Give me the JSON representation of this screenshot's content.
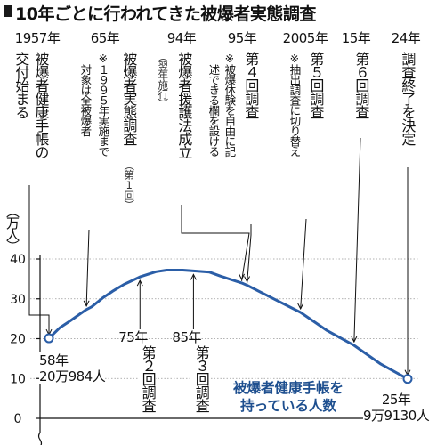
{
  "title": "10年ごとに行われてきた被爆者実態調査",
  "columns": [
    {
      "year": "1957年",
      "main": [
        "交付始まる",
        "被爆者健康手帳の"
      ],
      "note": [],
      "sub": ""
    },
    {
      "year": "65年",
      "main": [
        "被爆者実態調査"
      ],
      "sub": "（第1回）",
      "note": [
        "※１９９５年実施まで",
        "対象は全被爆者"
      ]
    },
    {
      "year": "94年",
      "main": [
        "被爆者援護法成立"
      ],
      "sub": "（翌年施行）",
      "note": []
    },
    {
      "year": "95年",
      "main": [
        "第４回調査"
      ],
      "sub": "",
      "note": [
        "※被爆体験を自由に記",
        "述できる欄を設ける"
      ]
    },
    {
      "year": "2005年",
      "main": [
        "第５回調査"
      ],
      "sub": "",
      "note": [
        "※抽出調査に切り替え"
      ]
    },
    {
      "year": "15年",
      "main": [
        "第６回調査"
      ],
      "sub": "",
      "note": []
    },
    {
      "year": "24年",
      "main": [
        "調査終了を決定"
      ],
      "sub": "",
      "note": []
    }
  ],
  "lower_labels": [
    {
      "year": "75年",
      "main": "第２回調査"
    },
    {
      "year": "85年",
      "main": "第３回調査"
    }
  ],
  "start_label": {
    "line1": "58年",
    "line2": "20万984人"
  },
  "end_label": {
    "line1": "25年",
    "line2": "9万9130人"
  },
  "y_unit": "（万人）",
  "series_label": {
    "line1": "被爆者健康手帳を",
    "line2": "持っている人数"
  },
  "colors": {
    "line": "#2b5ea7",
    "text": "#111111",
    "grid": "#999999",
    "series_label": "#1e4f8f"
  },
  "chart_data": {
    "type": "line",
    "title": "10年ごとに行われてきた被爆者実態調査",
    "ylabel": "（万人）",
    "yticks": [
      0,
      10,
      20,
      30,
      40
    ],
    "ylim": [
      0,
      40
    ],
    "xlim": [
      1957,
      2025
    ],
    "grid": true,
    "series": [
      {
        "name": "被爆者健康手帳を持っている人数",
        "x": [
          1958,
          1960,
          1962,
          1964,
          1965,
          1966,
          1968,
          1970,
          1972,
          1975,
          1978,
          1980,
          1983,
          1985,
          1988,
          1990,
          1994,
          1995,
          2000,
          2005,
          2010,
          2015,
          2020,
          2025
        ],
        "y": [
          20.1,
          22.7,
          24.5,
          26.4,
          27.3,
          28.0,
          30.2,
          32.0,
          33.6,
          35.5,
          36.8,
          37.2,
          37.2,
          37.0,
          36.7,
          35.7,
          34.0,
          33.4,
          30.0,
          26.6,
          22.0,
          18.3,
          13.6,
          9.9
        ]
      }
    ],
    "annotations": [
      {
        "x": 1958,
        "y": 20.1,
        "text": "58年 20万984人"
      },
      {
        "x": 2025,
        "y": 9.9,
        "text": "25年 9万9130人"
      }
    ]
  }
}
